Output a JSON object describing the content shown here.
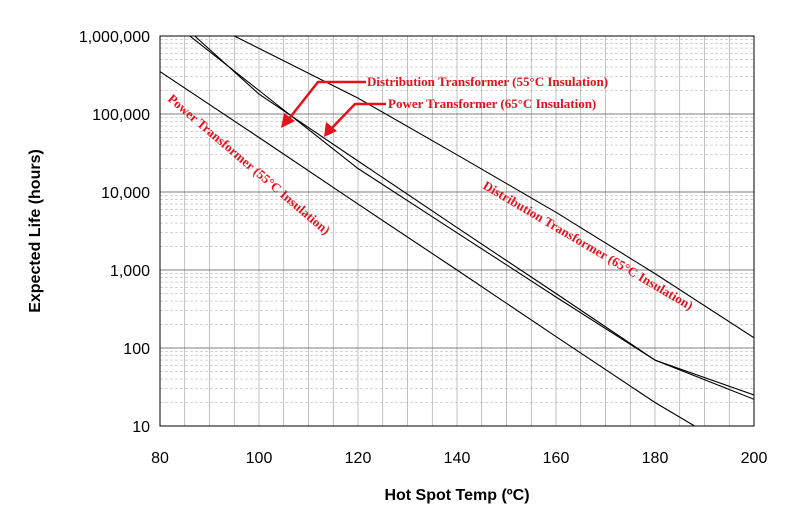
{
  "chart_data": {
    "type": "line",
    "title": "",
    "xlabel": "Hot Spot Temp (ºC)",
    "ylabel": "Expected Life (hours)",
    "xlim": [
      80,
      200
    ],
    "ylim": [
      10,
      1000000
    ],
    "yscale": "log",
    "grid": true,
    "x_ticks": [
      "80",
      "100",
      "120",
      "140",
      "160",
      "180",
      "200"
    ],
    "y_ticks": [
      "10",
      "100",
      "1,000",
      "10,000",
      "100,000",
      "1,000,000"
    ],
    "series": [
      {
        "name": "Power Transformer (55°C Insulation)",
        "x": [
          80,
          100,
          120,
          140,
          160,
          180,
          188
        ],
        "y": [
          350000,
          50000,
          7000,
          1000,
          140,
          20,
          10
        ]
      },
      {
        "name": "Distribution Transformer (55°C Insulation)",
        "x": [
          87,
          100,
          120,
          140,
          160,
          180,
          200
        ],
        "y": [
          1000000,
          180000,
          25000,
          3500,
          500,
          70,
          22
        ]
      },
      {
        "name": "Power Transformer (65°C Insulation)",
        "x": [
          80,
          100,
          120,
          140,
          160,
          180,
          200
        ],
        "y": [
          2000000,
          200000,
          20000,
          3000,
          450,
          70,
          25
        ]
      },
      {
        "name": "Distribution Transformer (65°C Insulation)",
        "x": [
          95,
          120,
          140,
          160,
          180,
          200
        ],
        "y": [
          1000000,
          160000,
          30000,
          5500,
          900,
          135
        ]
      }
    ],
    "annotations": [
      "Distribution Transformer (55°C Insulation)",
      "Power Transformer (65°C Insulation)",
      "Power Transformer (55°C Insulation)",
      "Distribution Transformer (65°C Insulation)"
    ],
    "colors": {
      "annotation": "#e8101a",
      "line": "#000000"
    }
  }
}
